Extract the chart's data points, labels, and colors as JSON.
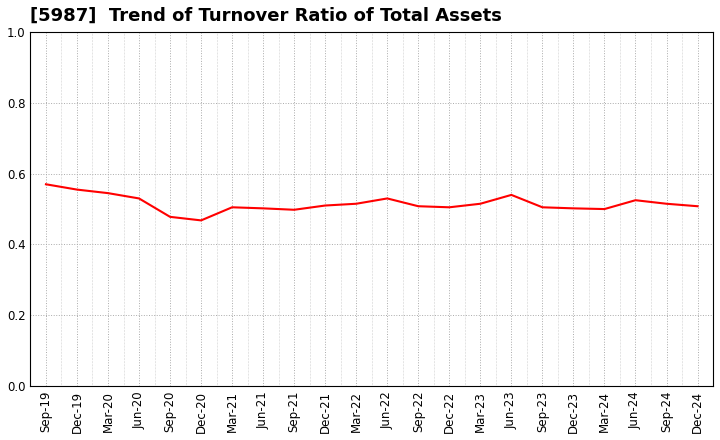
{
  "title": "[5987]  Trend of Turnover Ratio of Total Assets",
  "line_color": "#FF0000",
  "line_width": 1.5,
  "background_color": "#FFFFFF",
  "grid_color": "#AAAAAA",
  "ylim": [
    0.0,
    1.0
  ],
  "yticks": [
    0.0,
    0.2,
    0.4,
    0.6,
    0.8,
    1.0
  ],
  "xlabels": [
    "Sep-19",
    "Dec-19",
    "Mar-20",
    "Jun-20",
    "Sep-20",
    "Dec-20",
    "Mar-21",
    "Jun-21",
    "Sep-21",
    "Dec-21",
    "Mar-22",
    "Jun-22",
    "Sep-22",
    "Dec-22",
    "Mar-23",
    "Jun-23",
    "Sep-23",
    "Dec-23",
    "Mar-24",
    "Jun-24",
    "Sep-24",
    "Dec-24"
  ],
  "values": [
    0.57,
    0.555,
    0.545,
    0.53,
    0.478,
    0.468,
    0.505,
    0.502,
    0.498,
    0.51,
    0.515,
    0.53,
    0.508,
    0.505,
    0.515,
    0.54,
    0.505,
    0.502,
    0.5,
    0.525,
    0.515,
    0.508
  ],
  "title_fontsize": 13,
  "tick_fontsize": 8.5
}
